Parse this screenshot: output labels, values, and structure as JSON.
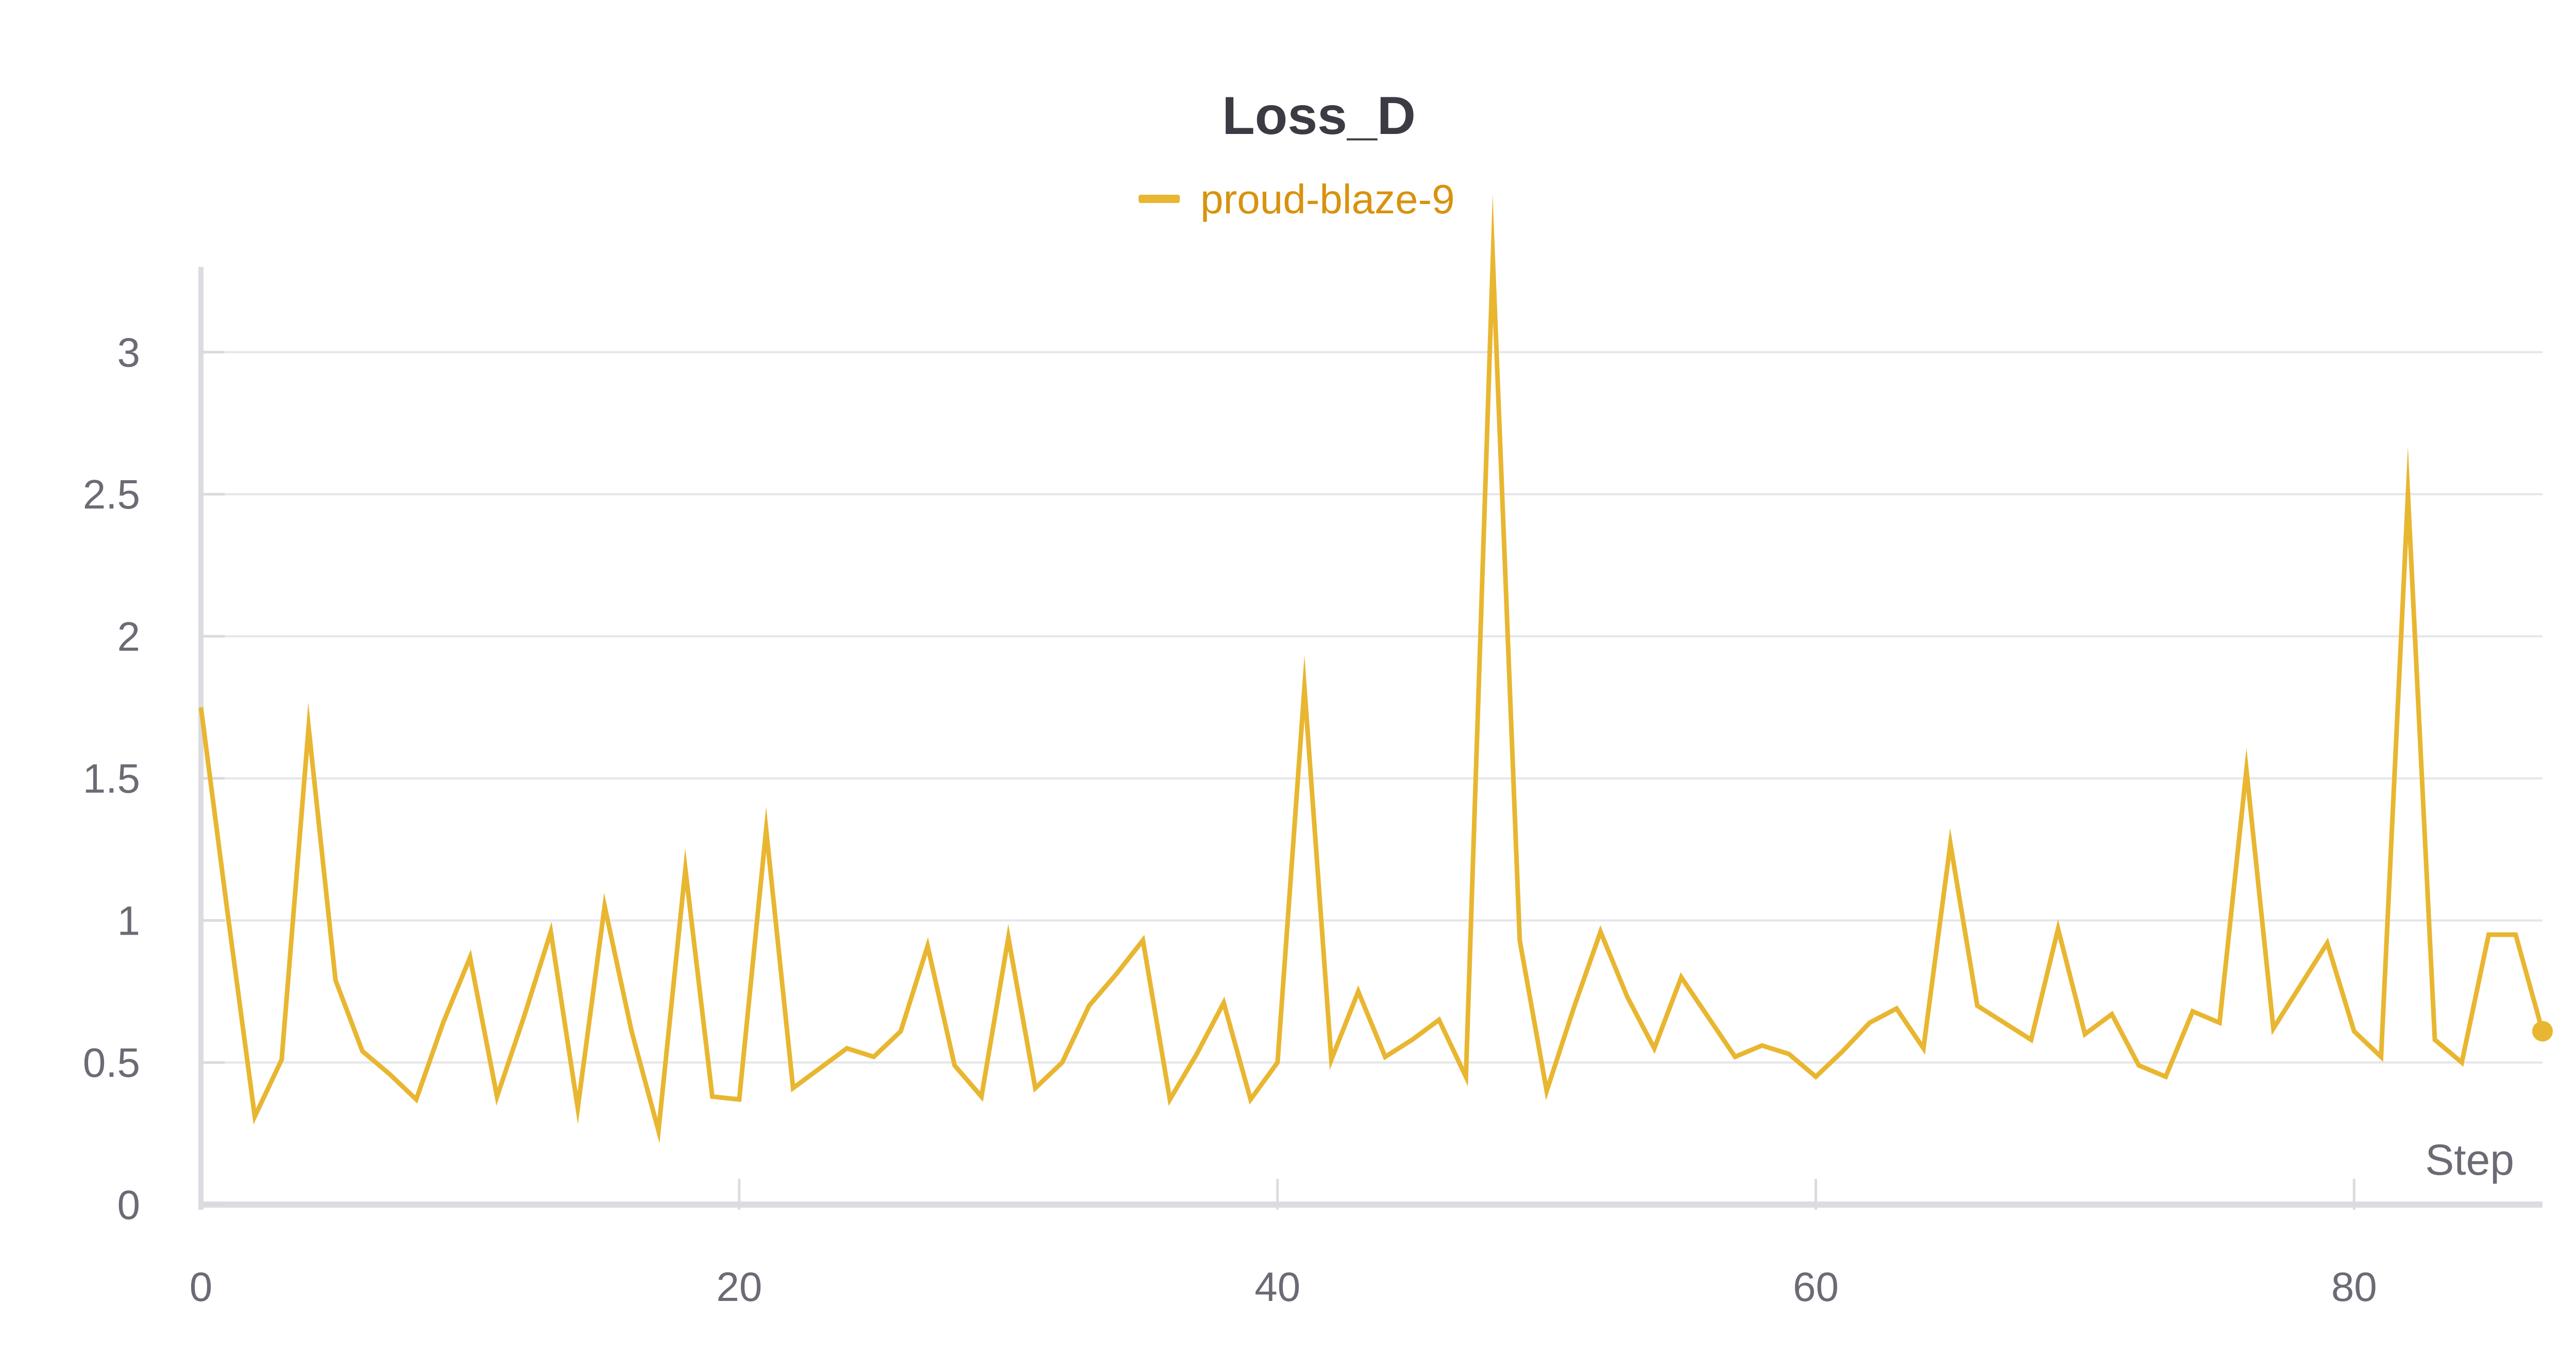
{
  "chart_data": {
    "type": "line",
    "title": "Loss_D",
    "xlabel": "Step",
    "ylabel": "",
    "xlim": [
      0,
      87
    ],
    "ylim": [
      0,
      3.3
    ],
    "xticks": [
      0,
      20,
      40,
      60,
      80
    ],
    "xtick_labels": [
      "0",
      "20",
      "40",
      "60",
      "80"
    ],
    "yticks": [
      0,
      0.5,
      1,
      1.5,
      2,
      2.5,
      3
    ],
    "ytick_labels": [
      "0",
      "0.5",
      "1",
      "1.5",
      "2",
      "2.5",
      "3"
    ],
    "grid": true,
    "legend_position": "top-center",
    "series": [
      {
        "name": "proud-blaze-9",
        "color": "#e8b630",
        "x": [
          0,
          1,
          2,
          3,
          4,
          5,
          6,
          7,
          8,
          9,
          10,
          11,
          12,
          13,
          14,
          15,
          16,
          17,
          18,
          19,
          20,
          21,
          22,
          23,
          24,
          25,
          26,
          27,
          28,
          29,
          30,
          31,
          32,
          33,
          34,
          35,
          36,
          37,
          38,
          39,
          40,
          41,
          42,
          43,
          44,
          45,
          46,
          47,
          48,
          49,
          50,
          51,
          52,
          53,
          54,
          55,
          56,
          57,
          58,
          59,
          60,
          61,
          62,
          63,
          64,
          65,
          66,
          67,
          68,
          69,
          70,
          71,
          72,
          73,
          74,
          75,
          76,
          77,
          78,
          79,
          80,
          81,
          82,
          83,
          84,
          85,
          86,
          87
        ],
        "values": [
          1.75,
          1.02,
          0.31,
          0.51,
          1.68,
          0.79,
          0.54,
          0.46,
          0.37,
          0.64,
          0.87,
          0.38,
          0.66,
          0.96,
          0.34,
          1.05,
          0.61,
          0.26,
          1.18,
          0.38,
          0.37,
          1.32,
          0.41,
          0.48,
          0.55,
          0.52,
          0.61,
          0.91,
          0.49,
          0.38,
          0.94,
          0.41,
          0.5,
          0.7,
          0.81,
          0.93,
          0.37,
          0.53,
          0.71,
          0.37,
          0.5,
          1.82,
          0.51,
          0.75,
          0.52,
          0.58,
          0.65,
          0.45,
          3.33,
          0.93,
          0.4,
          0.69,
          0.96,
          0.73,
          0.55,
          0.8,
          0.66,
          0.52,
          0.56,
          0.53,
          0.45,
          0.54,
          0.64,
          0.69,
          0.55,
          1.27,
          0.7,
          0.64,
          0.58,
          0.97,
          0.6,
          0.67,
          0.49,
          0.45,
          0.68,
          0.64,
          1.53,
          0.62,
          0.77,
          0.92,
          0.61,
          0.52,
          2.5,
          0.58,
          0.5,
          0.95,
          0.95,
          0.61
        ]
      }
    ]
  }
}
